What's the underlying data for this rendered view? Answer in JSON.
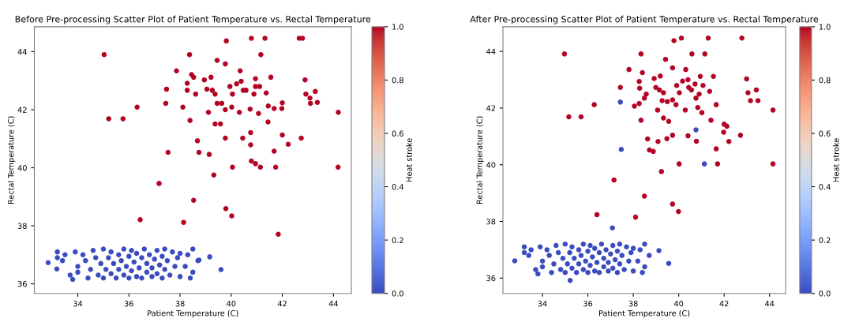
{
  "chart_data": [
    {
      "type": "scatter",
      "title": "Before Pre-processing Scatter Plot of Patient Temperature vs. Rectal Temperature",
      "xlabel": "Patient Temperature (C)",
      "ylabel": "Rectal Temperature (C)",
      "clabel": "Heat stroke",
      "xlim": [
        32.3,
        44.7
      ],
      "ylim": [
        35.67,
        44.86
      ],
      "xticks": [
        34,
        36,
        38,
        40,
        42,
        44
      ],
      "yticks": [
        36,
        38,
        40,
        42,
        44
      ],
      "clim": [
        0,
        1
      ],
      "cticks": [
        {
          "value": 0,
          "label": "0.0"
        },
        {
          "value": 0.2,
          "label": "0.2"
        },
        {
          "value": 0.4,
          "label": "0.4"
        },
        {
          "value": 0.6,
          "label": "0.6"
        },
        {
          "value": 0.8,
          "label": "0.8"
        },
        {
          "value": 1,
          "label": "1.0"
        }
      ],
      "marker": "circle",
      "grid": false,
      "series": [
        {
          "x": [
            35.03,
            39.81,
            40.79,
            41.32,
            42.66,
            42.79,
            38.37,
            41.16,
            39.45,
            39.77,
            37.86,
            40.35,
            38.45,
            38.53,
            39.21,
            38.95,
            38.28,
            37.47,
            38.28,
            38.61,
            39.05,
            39.26,
            39.37,
            39.95,
            40.21,
            40.39,
            40.47,
            40.58,
            40.95,
            40.95,
            41.11,
            40.89,
            40.05,
            41.55,
            41.37,
            42.89,
            42.92,
            43.08,
            43.29,
            43.37,
            43.1,
            37.44,
            38.11,
            39.45,
            39.63,
            39.77,
            40.02,
            40.32,
            40.74,
            41.07,
            41.45,
            41.68,
            41.98,
            42.0,
            44.19,
            36.32,
            35.21,
            35.77,
            39.11,
            38.39,
            39.37,
            39.58,
            41.44,
            39.77,
            40.45,
            40.76,
            40.76,
            42.0,
            42.74,
            42.23,
            38.68,
            37.53,
            38.74,
            39.14,
            41.68,
            40.79,
            40.95,
            40.05,
            41.14,
            41.74,
            44.18,
            39.32,
            37.18,
            38.53,
            39.79,
            40.02,
            36.44,
            38.14,
            41.84
          ],
          "values": [
            43.9,
            44.37,
            44.46,
            44.46,
            44.46,
            44.46,
            43.9,
            43.9,
            43.7,
            43.58,
            43.34,
            43.34,
            43.21,
            43.12,
            43.12,
            43.03,
            42.91,
            42.71,
            42.67,
            42.54,
            42.71,
            42.67,
            42.54,
            42.8,
            42.89,
            42.98,
            42.67,
            42.67,
            43.07,
            42.8,
            42.8,
            42.54,
            42.54,
            43.12,
            42.58,
            43.03,
            42.54,
            42.4,
            42.63,
            42.25,
            42.22,
            42.22,
            42.09,
            42.22,
            42.22,
            42.0,
            42.09,
            41.91,
            42.02,
            41.87,
            42.13,
            42.04,
            42.04,
            42.24,
            41.91,
            42.09,
            41.69,
            41.69,
            41.91,
            41.63,
            41.51,
            41.51,
            41.58,
            41.02,
            41.02,
            41.21,
            40.79,
            41.13,
            41.02,
            40.81,
            40.93,
            40.53,
            40.53,
            40.46,
            40.57,
            40.23,
            40.14,
            40.02,
            40.02,
            40.02,
            40.02,
            39.75,
            39.46,
            38.88,
            38.59,
            38.34,
            38.21,
            38.12,
            37.71
          ],
          "cvalues": [
            1,
            1,
            1,
            1,
            1,
            1,
            1,
            1,
            1,
            1,
            1,
            1,
            1,
            1,
            1,
            1,
            1,
            1,
            1,
            1,
            1,
            1,
            1,
            1,
            1,
            1,
            1,
            1,
            1,
            1,
            1,
            1,
            1,
            1,
            1,
            1,
            1,
            1,
            1,
            1,
            1,
            1,
            1,
            1,
            1,
            1,
            1,
            1,
            1,
            1,
            1,
            1,
            1,
            1,
            1,
            1,
            1,
            1,
            1,
            1,
            1,
            1,
            1,
            1,
            1,
            1,
            1,
            1,
            1,
            1,
            1,
            1,
            1,
            1,
            1,
            1,
            1,
            1,
            1,
            1,
            1,
            1,
            1,
            1,
            1,
            1,
            1,
            1,
            1
          ]
        },
        {
          "x": [
            32.84,
            33.18,
            39.16,
            39.6,
            38.74,
            33.2,
            33.2,
            33.5,
            33.4,
            33.7,
            33.8,
            33.9,
            34.0,
            34.0,
            34.2,
            34.3,
            34.4,
            34.5,
            34.6,
            34.7,
            34.8,
            34.9,
            35.0,
            35.0,
            35.1,
            35.2,
            35.3,
            35.3,
            35.4,
            35.5,
            35.6,
            35.6,
            35.7,
            35.8,
            35.8,
            35.9,
            36.0,
            36.0,
            36.1,
            36.1,
            36.2,
            36.3,
            36.3,
            36.4,
            36.5,
            36.5,
            36.6,
            36.7,
            36.7,
            36.8,
            36.9,
            36.9,
            37.0,
            37.1,
            37.1,
            37.2,
            37.3,
            37.3,
            37.4,
            37.4,
            37.5,
            37.6,
            37.7,
            37.8,
            37.9,
            38.0,
            38.0,
            38.2,
            38.3,
            38.4,
            38.5,
            38.5,
            38.7
          ],
          "values": [
            36.73,
            36.51,
            36.93,
            36.49,
            36.82,
            37.1,
            36.9,
            37.0,
            36.8,
            36.3,
            36.15,
            37.1,
            36.6,
            36.4,
            37.0,
            36.8,
            36.2,
            36.5,
            37.15,
            36.9,
            36.3,
            36.7,
            37.2,
            36.2,
            36.5,
            36.9,
            37.1,
            36.35,
            36.7,
            36.2,
            37.0,
            36.5,
            36.8,
            37.2,
            36.3,
            36.6,
            36.95,
            36.2,
            37.15,
            36.45,
            36.75,
            36.25,
            37.05,
            36.55,
            36.9,
            36.2,
            37.2,
            36.4,
            36.7,
            37.0,
            36.25,
            36.55,
            36.85,
            37.15,
            36.35,
            36.65,
            36.95,
            36.2,
            37.2,
            36.5,
            36.8,
            36.3,
            37.1,
            36.6,
            36.9,
            36.25,
            37.05,
            36.6,
            37.0,
            36.2,
            36.4,
            37.2,
            36.8
          ],
          "cvalues": [
            0,
            0,
            0,
            0,
            0,
            0,
            0,
            0,
            0,
            0,
            0,
            0,
            0,
            0,
            0,
            0,
            0,
            0,
            0,
            0,
            0,
            0,
            0,
            0,
            0,
            0,
            0,
            0,
            0,
            0,
            0,
            0,
            0,
            0,
            0,
            0,
            0,
            0,
            0,
            0,
            0,
            0,
            0,
            0,
            0,
            0,
            0,
            0,
            0,
            0,
            0,
            0,
            0,
            0,
            0,
            0,
            0,
            0,
            0,
            0,
            0,
            0,
            0,
            0,
            0,
            0,
            0,
            0,
            0,
            0,
            0,
            0,
            0
          ]
        }
      ]
    },
    {
      "type": "scatter",
      "title": "After Pre-processing Scatter Plot of Patient Temperature vs. Rectal Temperature",
      "xlabel": "Patient Temperature (C)",
      "ylabel": "Rectal Temperature (C)",
      "clabel": "Heat stroke",
      "xlim": [
        32.26,
        44.71
      ],
      "ylim": [
        35.46,
        44.87
      ],
      "xticks": [
        34,
        36,
        38,
        40,
        42,
        44
      ],
      "yticks": [
        36,
        38,
        40,
        42,
        44
      ],
      "clim": [
        0,
        1
      ],
      "cticks": [
        {
          "value": 0,
          "label": "0.0"
        },
        {
          "value": 0.2,
          "label": "0.2"
        },
        {
          "value": 0.4,
          "label": "0.4"
        },
        {
          "value": 0.6,
          "label": "0.6"
        },
        {
          "value": 0.8,
          "label": "0.8"
        },
        {
          "value": 1,
          "label": "1.0"
        }
      ],
      "marker": "circle",
      "grid": false,
      "series": [
        {
          "x": [
            34.97,
            39.79,
            40.12,
            41.3,
            42.78,
            38.34,
            40.58,
            41.15,
            39.42,
            39.73,
            37.81,
            38.4,
            40.31,
            39.19,
            38.92,
            40.95,
            41.53,
            38.26,
            38.28,
            37.43,
            39.91,
            40.17,
            40.41,
            40.72,
            41.07,
            38.99,
            39.15,
            39.33,
            40.03,
            40.44,
            40.56,
            41.36,
            40.9,
            40.76,
            38.57,
            38.49,
            39.27,
            39.5,
            39.73,
            42.99,
            43.05,
            43.16,
            43.49,
            43.42,
            38.05,
            38.26,
            36.28,
            39.88,
            40.29,
            41.65,
            40.84,
            41.02,
            39.07,
            44.15,
            35.16,
            35.7,
            38.34,
            39.33,
            39.56,
            41.42,
            42.0,
            42.12,
            41.98,
            40.41,
            40.78,
            39.73,
            39.48,
            38.63,
            39.09,
            38.71,
            38.88,
            41.65,
            42.21,
            42.72,
            40.02,
            41.71,
            44.15,
            39.24,
            37.15,
            38.49,
            39.73,
            39.99,
            36.4,
            38.1
          ],
          "values": [
            43.91,
            44.38,
            44.47,
            44.47,
            44.47,
            43.91,
            43.91,
            43.91,
            43.72,
            43.42,
            43.36,
            43.25,
            43.36,
            43.13,
            43.04,
            43.12,
            43.12,
            42.94,
            42.7,
            42.73,
            42.8,
            42.95,
            43.0,
            42.85,
            42.8,
            42.73,
            42.64,
            42.54,
            42.54,
            42.73,
            42.64,
            42.59,
            42.49,
            42.35,
            42.49,
            42.35,
            42.26,
            42.23,
            42.29,
            43.03,
            42.54,
            42.26,
            42.26,
            42.64,
            42.07,
            42.16,
            42.12,
            42.12,
            41.93,
            42.12,
            42.02,
            41.84,
            41.93,
            41.93,
            41.69,
            41.69,
            41.57,
            41.65,
            41.53,
            41.57,
            41.43,
            41.36,
            41.15,
            41.02,
            40.83,
            41.04,
            40.92,
            40.91,
            40.82,
            40.52,
            40.47,
            40.56,
            40.82,
            41.04,
            40.03,
            40.03,
            40.03,
            39.76,
            39.46,
            38.89,
            38.61,
            38.35,
            38.24,
            38.15
          ],
          "cvalues": [
            1,
            1,
            1,
            1,
            1,
            1,
            1,
            1,
            1,
            1,
            1,
            1,
            1,
            1,
            1,
            1,
            1,
            1,
            1,
            1,
            1,
            1,
            1,
            1,
            1,
            1,
            1,
            1,
            1,
            1,
            1,
            1,
            1,
            1,
            1,
            1,
            1,
            1,
            1,
            1,
            1,
            1,
            1,
            1,
            1,
            1,
            1,
            1,
            1,
            1,
            1,
            1,
            1,
            1,
            1,
            1,
            1,
            1,
            1,
            1,
            1,
            1,
            1,
            1,
            1,
            1,
            1,
            1,
            1,
            1,
            1,
            1,
            1,
            1,
            1,
            1,
            1,
            1,
            1,
            1,
            1,
            1,
            1,
            1
          ]
        },
        {
          "x": [
            37.43,
            37.47,
            40.76,
            41.13,
            37.08,
            32.78,
            39.13,
            39.56,
            35.22,
            33.2,
            33.2,
            33.5,
            33.4,
            33.7,
            33.8,
            33.9,
            34.0,
            34.0,
            34.2,
            34.3,
            34.4,
            34.5,
            34.6,
            34.7,
            34.8,
            34.9,
            35.0,
            35.0,
            35.1,
            35.2,
            35.3,
            35.3,
            35.4,
            35.5,
            35.6,
            35.6,
            35.7,
            35.8,
            35.8,
            35.9,
            36.0,
            36.0,
            36.1,
            36.1,
            36.2,
            36.3,
            36.3,
            36.4,
            36.5,
            36.5,
            36.6,
            36.7,
            36.7,
            36.8,
            36.9,
            36.9,
            37.0,
            37.1,
            37.1,
            37.2,
            37.3,
            37.3,
            37.4,
            37.4,
            37.5,
            37.6,
            37.7,
            37.8,
            37.9,
            38.0,
            38.0,
            38.2,
            38.3,
            38.4,
            38.5,
            38.5,
            38.7
          ],
          "values": [
            42.21,
            40.54,
            41.23,
            40.03,
            37.77,
            36.61,
            36.97,
            36.52,
            35.92,
            37.1,
            36.9,
            37.0,
            36.8,
            36.3,
            36.15,
            37.1,
            36.6,
            36.4,
            37.0,
            36.8,
            36.2,
            36.5,
            37.15,
            36.9,
            36.3,
            36.7,
            37.2,
            36.2,
            36.5,
            36.9,
            37.1,
            36.35,
            36.7,
            36.2,
            37.0,
            36.5,
            36.8,
            37.2,
            36.3,
            36.6,
            36.95,
            36.2,
            37.15,
            36.45,
            36.75,
            36.25,
            37.05,
            36.55,
            36.9,
            36.2,
            37.2,
            36.4,
            36.7,
            37.0,
            36.25,
            36.55,
            36.85,
            37.15,
            36.35,
            36.65,
            36.95,
            36.2,
            37.2,
            36.5,
            36.8,
            36.3,
            37.1,
            36.6,
            36.9,
            36.25,
            37.05,
            36.6,
            37.0,
            36.2,
            36.4,
            37.2,
            36.8
          ],
          "cvalues": [
            0,
            0,
            0,
            0,
            0,
            0,
            0,
            0,
            0,
            0,
            0,
            0,
            0,
            0,
            0,
            0,
            0,
            0,
            0,
            0,
            0,
            0,
            0,
            0,
            0,
            0,
            0,
            0,
            0,
            0,
            0,
            0,
            0,
            0,
            0,
            0,
            0,
            0,
            0,
            0,
            0,
            0,
            0,
            0,
            0,
            0,
            0,
            0,
            0,
            0,
            0,
            0,
            0,
            0,
            0,
            0,
            0,
            0,
            0,
            0,
            0,
            0,
            0,
            0,
            0,
            0,
            0,
            0,
            0,
            0,
            0,
            0,
            0,
            0,
            0,
            0,
            0
          ]
        }
      ]
    }
  ]
}
